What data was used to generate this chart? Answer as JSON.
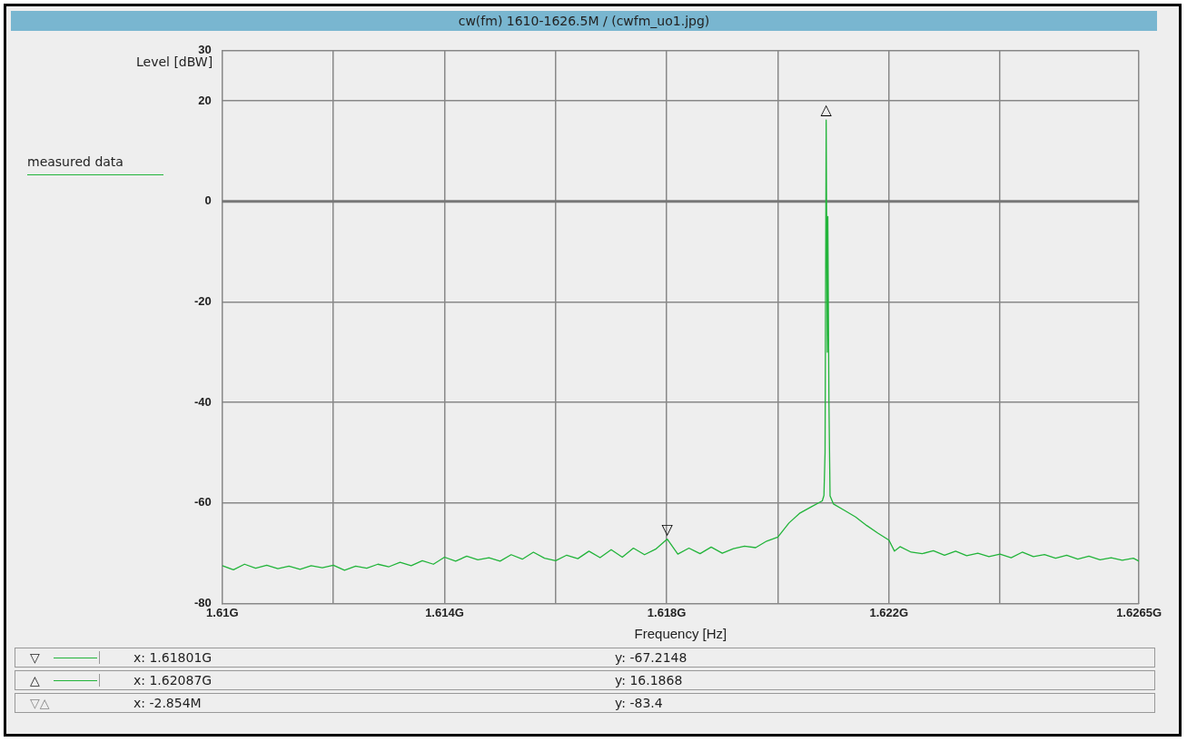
{
  "chart_data": {
    "type": "line",
    "title": "cw(fm) 1610-1626.5M / (cwfm_uo1.jpg)",
    "xlabel": "Frequency [Hz]",
    "ylabel": "Level [dBW]",
    "legend": "left",
    "grid": true,
    "marker": "none",
    "line_style": "solid",
    "xlim": [
      1.61,
      1.6265
    ],
    "xticks": [
      {
        "value": 1.61,
        "label": "1.61G"
      },
      {
        "value": 1.612,
        "label": null
      },
      {
        "value": 1.614,
        "label": "1.614G"
      },
      {
        "value": 1.616,
        "label": null
      },
      {
        "value": 1.618,
        "label": "1.618G"
      },
      {
        "value": 1.62,
        "label": null
      },
      {
        "value": 1.622,
        "label": "1.622G"
      },
      {
        "value": 1.624,
        "label": null
      },
      {
        "value": 1.6265,
        "label": "1.6265G"
      }
    ],
    "ylim": [
      -80,
      30
    ],
    "yticks": [
      -80,
      -60,
      -40,
      -20,
      0,
      20,
      30
    ],
    "annotations": [
      {
        "text": "▽",
        "x": 1.61801,
        "y": -67.2148
      },
      {
        "text": "△",
        "x": 1.62087,
        "y": 16.1868
      },
      "▽△",
      "x: 1.61801G",
      "y: -67.2148",
      "x: 1.62087G",
      "y: 16.1868",
      "x: -2.854M",
      "y: -83.4"
    ],
    "series": [
      {
        "name": "measured data",
        "color": "#22b43a",
        "x": [
          1.61,
          1.6102,
          1.6104,
          1.6106,
          1.6108,
          1.611,
          1.6112,
          1.6114,
          1.6116,
          1.6118,
          1.612,
          1.6122,
          1.6124,
          1.6126,
          1.6128,
          1.613,
          1.6132,
          1.6134,
          1.6136,
          1.6138,
          1.614,
          1.6142,
          1.6144,
          1.6146,
          1.6148,
          1.615,
          1.6152,
          1.6154,
          1.6156,
          1.6158,
          1.616,
          1.6162,
          1.6164,
          1.6166,
          1.6168,
          1.617,
          1.6172,
          1.6174,
          1.6176,
          1.6178,
          1.61801,
          1.6182,
          1.6184,
          1.6186,
          1.6188,
          1.619,
          1.6192,
          1.6194,
          1.6196,
          1.6198,
          1.62,
          1.6202,
          1.6204,
          1.6206,
          1.6208,
          1.62083,
          1.62085,
          1.62087,
          1.62089,
          1.6209,
          1.62092,
          1.62094,
          1.621,
          1.6212,
          1.6214,
          1.6216,
          1.6218,
          1.622,
          1.6221,
          1.6222,
          1.6224,
          1.6226,
          1.6228,
          1.623,
          1.6232,
          1.6234,
          1.6236,
          1.6238,
          1.624,
          1.6242,
          1.6244,
          1.6246,
          1.6248,
          1.625,
          1.6252,
          1.6254,
          1.6256,
          1.6258,
          1.626,
          1.6262,
          1.6264,
          1.6265
        ],
        "values": [
          -72.5,
          -73.3,
          -72.2,
          -73.0,
          -72.4,
          -73.1,
          -72.6,
          -73.2,
          -72.5,
          -72.9,
          -72.4,
          -73.4,
          -72.6,
          -73.0,
          -72.2,
          -72.7,
          -71.8,
          -72.5,
          -71.5,
          -72.2,
          -70.8,
          -71.6,
          -70.6,
          -71.3,
          -70.9,
          -71.6,
          -70.3,
          -71.2,
          -69.8,
          -71.0,
          -71.5,
          -70.4,
          -71.1,
          -69.6,
          -70.9,
          -69.3,
          -70.8,
          -69.0,
          -70.3,
          -69.2,
          -67.2,
          -70.2,
          -69.0,
          -70.1,
          -68.8,
          -70.0,
          -69.1,
          -68.6,
          -68.9,
          -67.6,
          -66.8,
          -64.0,
          -62.0,
          -60.8,
          -59.6,
          -58.5,
          -50,
          16.2,
          -30,
          -3,
          -40,
          -58.6,
          -60.2,
          -61.5,
          -62.8,
          -64.5,
          -66.0,
          -67.4,
          -69.6,
          -68.7,
          -69.8,
          -70.1,
          -69.5,
          -70.4,
          -69.6,
          -70.5,
          -70.0,
          -70.7,
          -70.2,
          -70.9,
          -69.8,
          -70.7,
          -70.3,
          -71.0,
          -70.4,
          -71.2,
          -70.6,
          -71.3,
          -70.9,
          -71.4,
          -71.0,
          -71.6
        ]
      }
    ]
  }
}
